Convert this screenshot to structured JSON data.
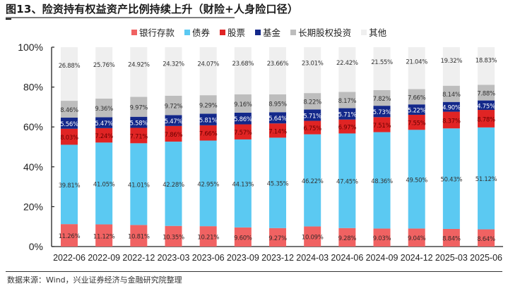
{
  "title": "图13、险资持有权益资产比例持续上升（财险+人身险口径）",
  "footer": "数据来源：Wind，兴业证券经济与金融研究院整理",
  "colors": {
    "bank_deposits": "#f06262",
    "bonds": "#5bc9f2",
    "stocks": "#e02424",
    "funds": "#13288a",
    "long_term_equity": "#bdbdbd",
    "other": "#efefef"
  },
  "chart_data": {
    "type": "bar",
    "stacked": true,
    "title": "图13、险资持有权益资产比例持续上升（财险+人身险口径）",
    "xlabel": "",
    "ylabel": "",
    "ylim": [
      0,
      100
    ],
    "yticks": [
      "0%",
      "20%",
      "40%",
      "60%",
      "80%",
      "100%"
    ],
    "grid": false,
    "legend_position": "top",
    "categories": [
      "2022-06",
      "2022-09",
      "2022-12",
      "2023-03",
      "2023-06",
      "2023-09",
      "2023-12",
      "2024-03",
      "2024-06",
      "2024-09",
      "2024-12",
      "2025-03",
      "2025-06"
    ],
    "series": [
      {
        "name": "银行存款",
        "color_key": "bank_deposits",
        "label_color": "#3a2a2a",
        "values": [
          11.26,
          11.12,
          10.81,
          10.35,
          10.21,
          9.6,
          9.27,
          10.09,
          9.28,
          9.03,
          9.04,
          8.84,
          8.64
        ]
      },
      {
        "name": "债券",
        "color_key": "bonds",
        "label_color": "#333333",
        "values": [
          39.81,
          41.05,
          41.01,
          42.28,
          42.95,
          44.13,
          45.35,
          46.22,
          47.45,
          48.36,
          49.5,
          50.43,
          51.12
        ]
      },
      {
        "name": "股票",
        "color_key": "stocks",
        "label_color": "#6a0000",
        "values": [
          8.03,
          7.24,
          7.71,
          7.86,
          7.66,
          7.57,
          7.14,
          6.75,
          6.97,
          7.51,
          7.55,
          8.37,
          8.78
        ]
      },
      {
        "name": "基金",
        "color_key": "funds",
        "label_color": "#ffffff",
        "values": [
          5.56,
          5.47,
          5.58,
          5.47,
          5.81,
          5.86,
          5.64,
          5.71,
          5.71,
          5.73,
          5.22,
          4.9,
          4.75
        ]
      },
      {
        "name": "长期股权投资",
        "color_key": "long_term_equity",
        "label_color": "#333333",
        "values": [
          8.46,
          9.36,
          9.97,
          9.72,
          9.29,
          9.16,
          8.95,
          8.22,
          8.17,
          7.82,
          7.66,
          8.14,
          7.88
        ]
      },
      {
        "name": "其他",
        "color_key": "other",
        "label_color": "#333333",
        "values": [
          26.88,
          25.76,
          24.92,
          24.32,
          24.07,
          23.68,
          23.66,
          23.01,
          22.42,
          21.55,
          21.04,
          19.32,
          18.83
        ]
      }
    ]
  }
}
